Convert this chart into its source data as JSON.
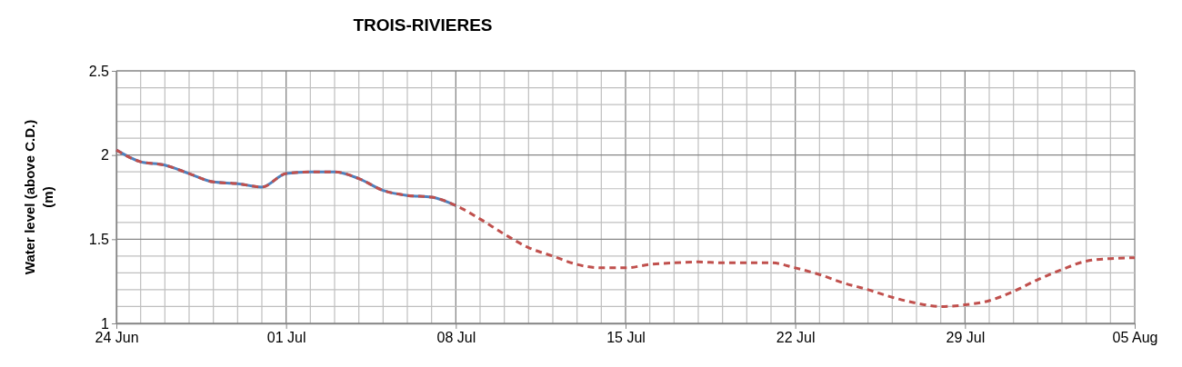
{
  "chart_data": {
    "type": "line",
    "title": "TROIS-RIVIERES",
    "ylabel": "Water level (above C.D.)\n(m)",
    "xlim": [
      "--06-24",
      "--08-05"
    ],
    "xticks": [
      {
        "value": "--06-24",
        "label": "24 Jun"
      },
      {
        "value": "--06-25",
        "label": null
      },
      {
        "value": "--06-26",
        "label": null
      },
      {
        "value": "--06-27",
        "label": null
      },
      {
        "value": "--06-28",
        "label": null
      },
      {
        "value": "--06-29",
        "label": null
      },
      {
        "value": "--06-30",
        "label": null
      },
      {
        "value": "--07-01",
        "label": "01 Jul"
      },
      {
        "value": "--07-02",
        "label": null
      },
      {
        "value": "--07-03",
        "label": null
      },
      {
        "value": "--07-04",
        "label": null
      },
      {
        "value": "--07-05",
        "label": null
      },
      {
        "value": "--07-06",
        "label": null
      },
      {
        "value": "--07-07",
        "label": null
      },
      {
        "value": "--07-08",
        "label": "08 Jul"
      },
      {
        "value": "--07-09",
        "label": null
      },
      {
        "value": "--07-10",
        "label": null
      },
      {
        "value": "--07-11",
        "label": null
      },
      {
        "value": "--07-12",
        "label": null
      },
      {
        "value": "--07-13",
        "label": null
      },
      {
        "value": "--07-14",
        "label": null
      },
      {
        "value": "--07-15",
        "label": "15 Jul"
      },
      {
        "value": "--07-16",
        "label": null
      },
      {
        "value": "--07-17",
        "label": null
      },
      {
        "value": "--07-18",
        "label": null
      },
      {
        "value": "--07-19",
        "label": null
      },
      {
        "value": "--07-20",
        "label": null
      },
      {
        "value": "--07-21",
        "label": null
      },
      {
        "value": "--07-22",
        "label": "22 Jul"
      },
      {
        "value": "--07-23",
        "label": null
      },
      {
        "value": "--07-24",
        "label": null
      },
      {
        "value": "--07-25",
        "label": null
      },
      {
        "value": "--07-26",
        "label": null
      },
      {
        "value": "--07-27",
        "label": null
      },
      {
        "value": "--07-28",
        "label": null
      },
      {
        "value": "--07-29",
        "label": "29 Jul"
      },
      {
        "value": "--07-30",
        "label": null
      },
      {
        "value": "--07-31",
        "label": null
      },
      {
        "value": "--08-01",
        "label": null
      },
      {
        "value": "--08-02",
        "label": null
      },
      {
        "value": "--08-03",
        "label": null
      },
      {
        "value": "--08-04",
        "label": null
      },
      {
        "value": "--08-05",
        "label": "05 Aug"
      }
    ],
    "ylim": [
      1,
      2.5
    ],
    "yticks": [
      1,
      {
        "value": 1.1,
        "label": null
      },
      {
        "value": 1.2,
        "label": null
      },
      {
        "value": 1.3,
        "label": null
      },
      {
        "value": 1.4,
        "label": null
      },
      1.5,
      {
        "value": 1.6,
        "label": null
      },
      {
        "value": 1.7,
        "label": null
      },
      {
        "value": 1.8,
        "label": null
      },
      {
        "value": 1.9,
        "label": null
      },
      2,
      {
        "value": 2.1,
        "label": null
      },
      {
        "value": 2.2,
        "label": null
      },
      {
        "value": 2.3,
        "label": null
      },
      {
        "value": 2.4,
        "label": null
      },
      2.5
    ],
    "grid": true,
    "series": [
      {
        "color": "#4f81bd",
        "line_style": "solid",
        "x": [
          "--06-24",
          "--06-25",
          "--06-26",
          "--06-27",
          "--06-28",
          "--06-29",
          "--06-30",
          "--07-01",
          "--07-02",
          "--07-03",
          "--07-04",
          "--07-05",
          "--07-06",
          "--07-07",
          "--07-08"
        ],
        "values": [
          2.03,
          1.96,
          1.94,
          1.89,
          1.84,
          1.83,
          1.81,
          1.89,
          1.9,
          1.9,
          1.86,
          1.79,
          1.76,
          1.75,
          1.7
        ]
      },
      {
        "color": "#c0504d",
        "line_style": "dashed",
        "x": [
          "--06-24",
          "--06-25",
          "--06-26",
          "--06-27",
          "--06-28",
          "--06-29",
          "--06-30",
          "--07-01",
          "--07-02",
          "--07-03",
          "--07-04",
          "--07-05",
          "--07-06",
          "--07-07",
          "--07-08",
          "--07-09",
          "--07-10",
          "--07-11",
          "--07-12",
          "--07-13",
          "--07-14",
          "--07-15",
          "--07-16",
          "--07-17",
          "--07-18",
          "--07-19",
          "--07-20",
          "--07-21",
          "--07-22",
          "--07-23",
          "--07-24",
          "--07-25",
          "--07-26",
          "--07-27",
          "--07-28",
          "--07-29",
          "--07-30",
          "--07-31",
          "--08-01",
          "--08-02",
          "--08-03",
          "--08-04",
          "--08-05"
        ],
        "values": [
          2.03,
          1.96,
          1.94,
          1.89,
          1.84,
          1.83,
          1.81,
          1.89,
          1.9,
          1.9,
          1.86,
          1.79,
          1.76,
          1.75,
          1.7,
          1.62,
          1.53,
          1.45,
          1.4,
          1.35,
          1.33,
          1.33,
          1.35,
          1.36,
          1.365,
          1.36,
          1.36,
          1.36,
          1.33,
          1.29,
          1.24,
          1.2,
          1.155,
          1.12,
          1.1,
          1.11,
          1.135,
          1.19,
          1.26,
          1.32,
          1.37,
          1.385,
          1.39
        ]
      }
    ]
  }
}
